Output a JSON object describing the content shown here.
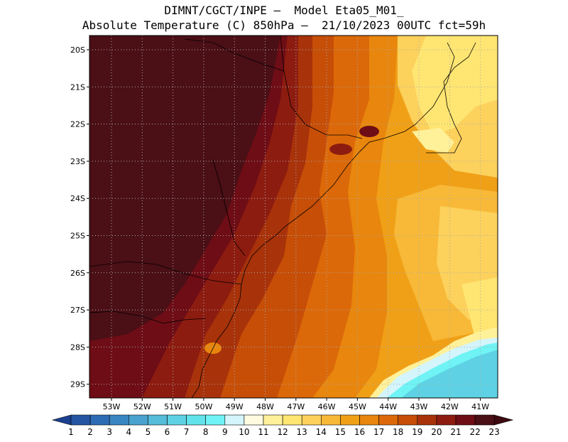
{
  "header": {
    "line1": "DIMNT/CGCT/INPE –  Model Eta05_M01_",
    "line2": "Absolute Temperature (C) 850hPa –  21/10/2023 00UTC fct=59h"
  },
  "map": {
    "lon_labels": [
      "53W",
      "52W",
      "51W",
      "50W",
      "49W",
      "48W",
      "47W",
      "46W",
      "45W",
      "44W",
      "43W",
      "42W",
      "41W"
    ],
    "lat_labels": [
      "20S",
      "21S",
      "22S",
      "23S",
      "24S",
      "25S",
      "26S",
      "27S",
      "28S",
      "29S"
    ],
    "grid": true,
    "grid_style": "dotted"
  },
  "colorbar": {
    "labels": [
      "1",
      "2",
      "3",
      "4",
      "5",
      "6",
      "7",
      "8",
      "9",
      "10",
      "11",
      "12",
      "13",
      "14",
      "15",
      "16",
      "17",
      "18",
      "19",
      "20",
      "21",
      "22",
      "23"
    ],
    "colors": [
      "#1c3f8f",
      "#2455a3",
      "#2d6cb5",
      "#3a86c2",
      "#4aa2cf",
      "#55bcd9",
      "#5ed2e4",
      "#62e3ec",
      "#6ff3f5",
      "#d3f5fb",
      "#fffbe0",
      "#fff19a",
      "#ffe572",
      "#fcd15c",
      "#f7b937",
      "#f0a017",
      "#e8860d",
      "#dc6909",
      "#c64e07",
      "#a8320a",
      "#8d1c10",
      "#6e0d15",
      "#4b0f16",
      "#3c0a10"
    ]
  }
}
